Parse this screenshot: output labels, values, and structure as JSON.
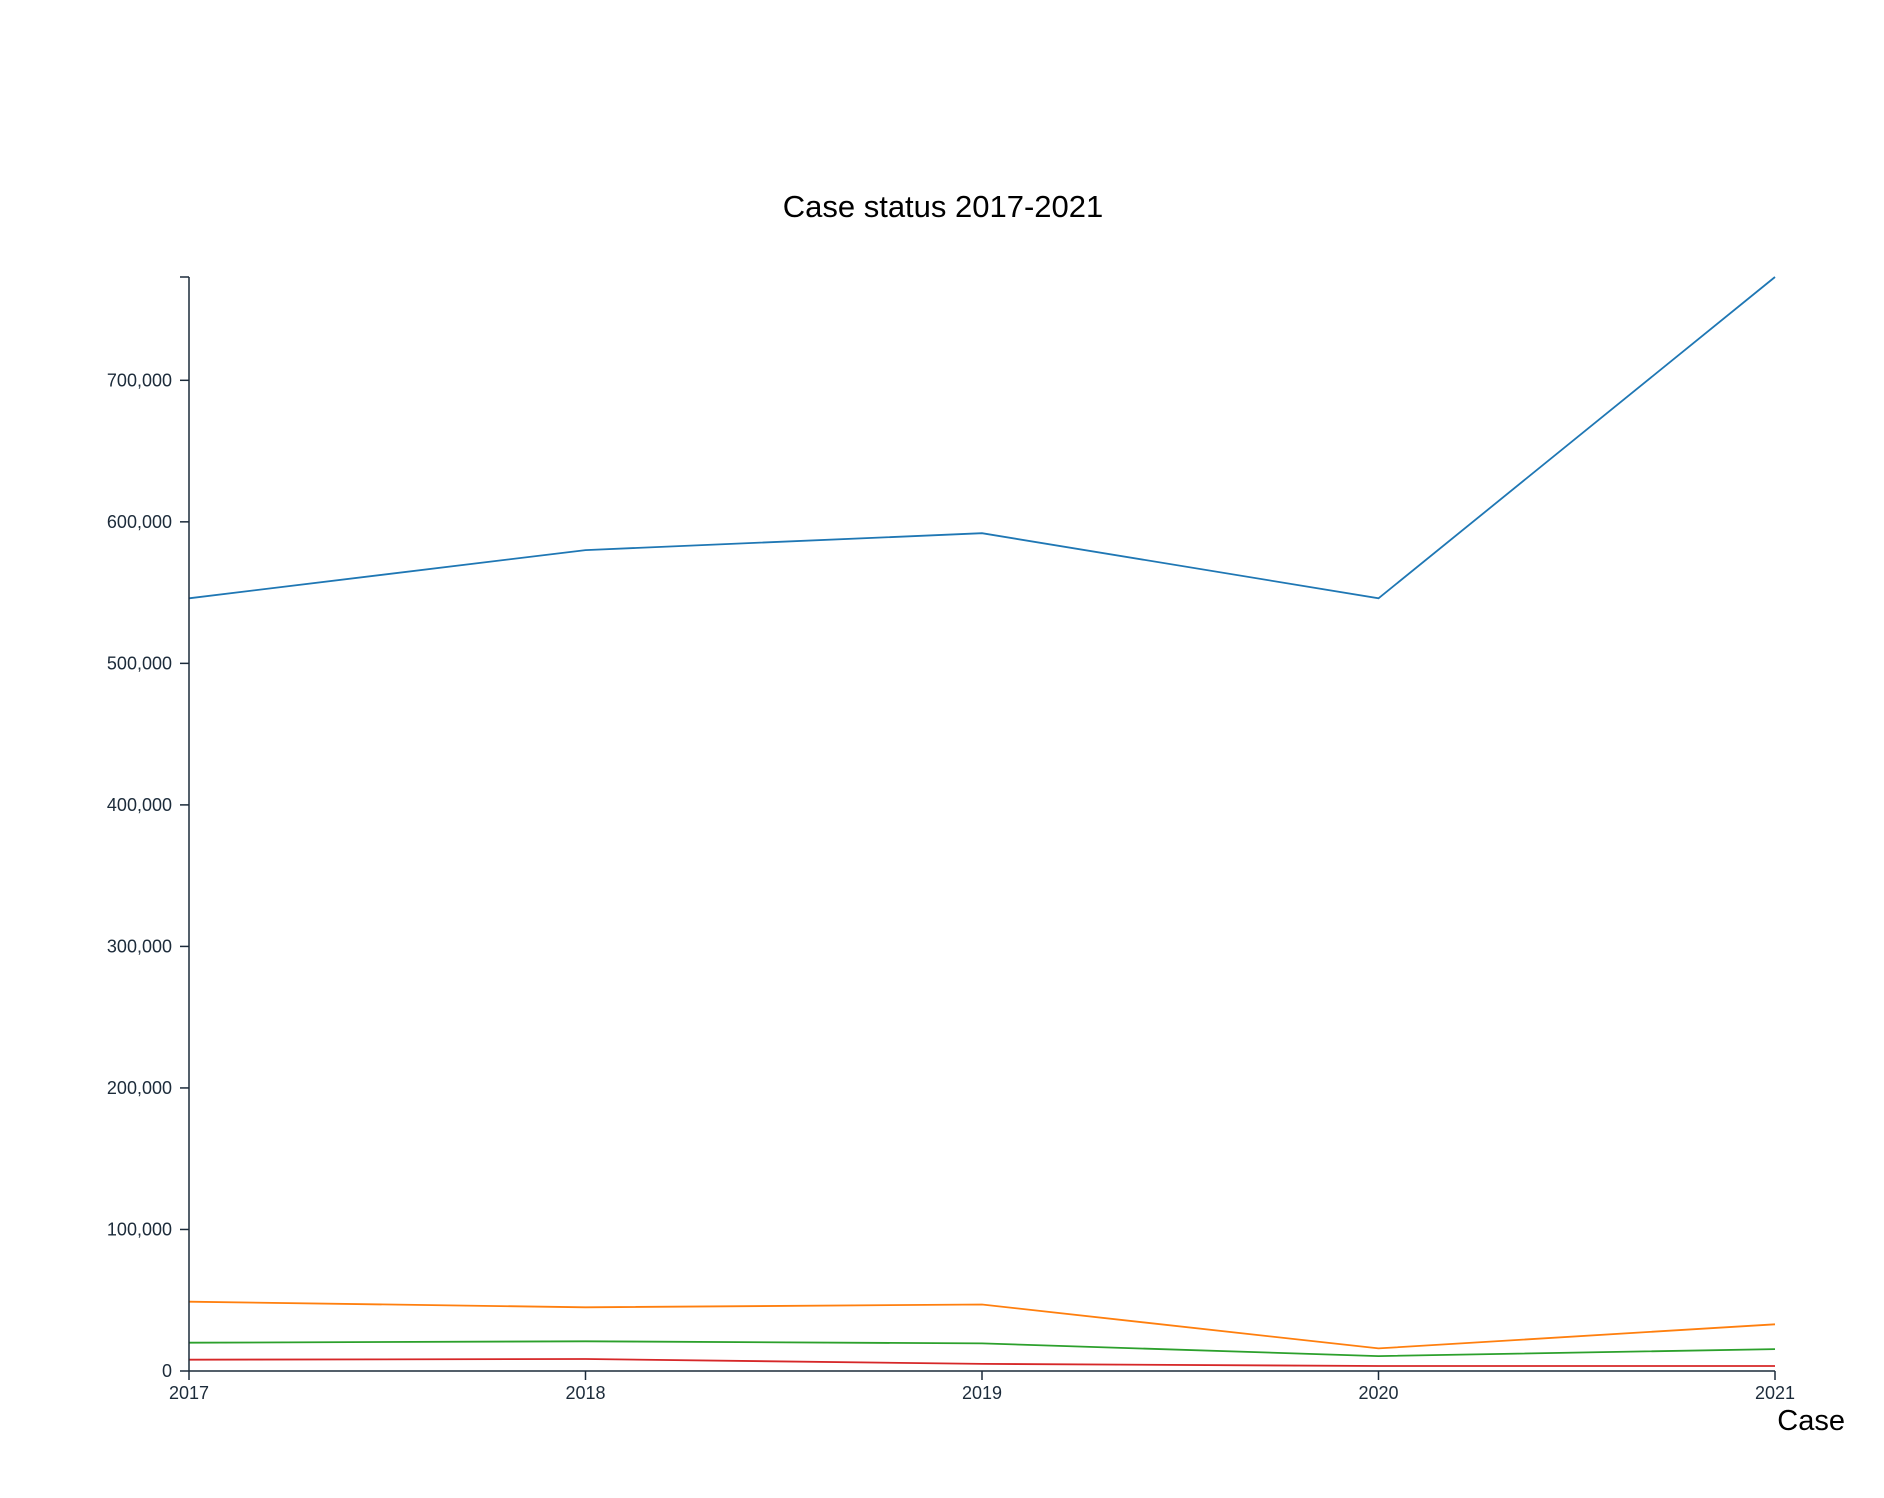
{
  "chart_data": {
    "type": "line",
    "title": "Case status 2017-2021",
    "xlabel": "Case",
    "ylabel": "",
    "x": [
      "2017",
      "2018",
      "2019",
      "2020",
      "2021"
    ],
    "y_ticks": [
      {
        "value": 0,
        "label": "0"
      },
      {
        "value": 100000,
        "label": "100,000"
      },
      {
        "value": 200000,
        "label": "200,000"
      },
      {
        "value": 300000,
        "label": "300,000"
      },
      {
        "value": 400000,
        "label": "400,000"
      },
      {
        "value": 500000,
        "label": "500,000"
      },
      {
        "value": 600000,
        "label": "600,000"
      },
      {
        "value": 700000,
        "label": "700,000"
      }
    ],
    "ylim": [
      0,
      773000
    ],
    "grid": false,
    "series": [
      {
        "color": "#1f77b4",
        "values": [
          546000,
          580000,
          592000,
          546000,
          773000
        ]
      },
      {
        "color": "#ff7f0e",
        "values": [
          49000,
          45000,
          47000,
          16000,
          33000
        ]
      },
      {
        "color": "#2ca02c",
        "values": [
          20000,
          21000,
          19500,
          10500,
          15500
        ]
      },
      {
        "color": "#d62728",
        "values": [
          8000,
          8500,
          5000,
          3500,
          3500
        ]
      }
    ]
  }
}
